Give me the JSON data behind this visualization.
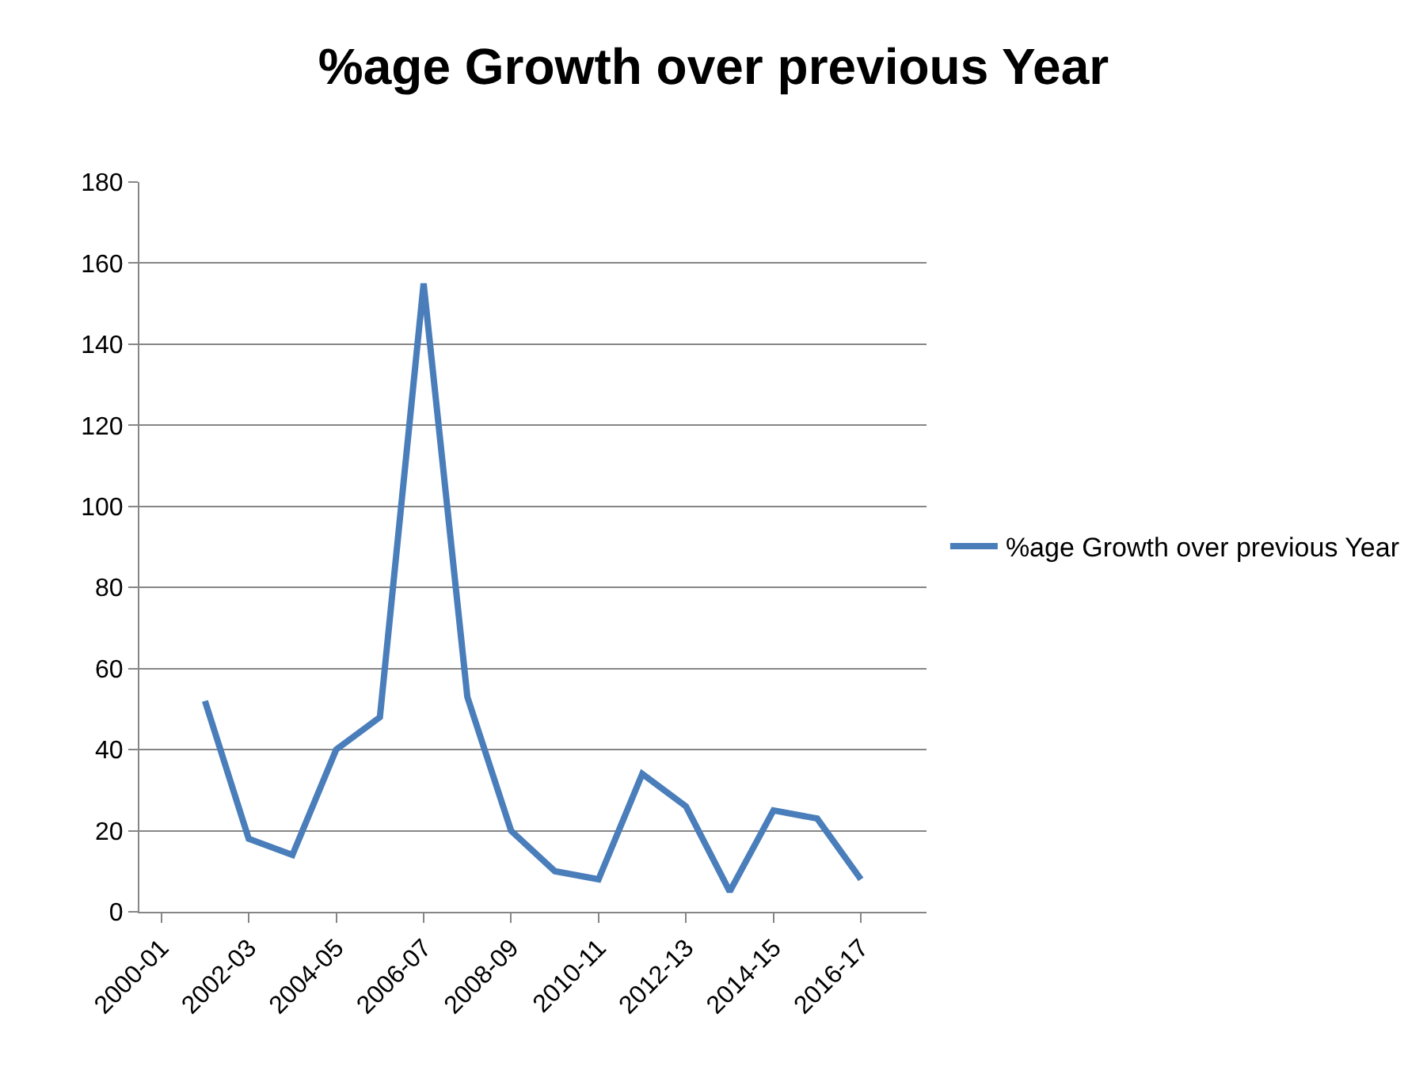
{
  "chart_data": {
    "type": "line",
    "title": "%age Growth over previous Year",
    "categories": [
      "2000-01",
      null,
      "2002-03",
      null,
      "2004-05",
      null,
      "2006-07",
      null,
      "2008-09",
      null,
      "2010-11",
      null,
      "2012-13",
      null,
      "2014-15",
      null,
      "2016-17",
      null
    ],
    "series": [
      {
        "name": "%age Growth over previous Year",
        "color": "#4a7ebb",
        "values": [
          null,
          52,
          18,
          14,
          40,
          48,
          155,
          53,
          20,
          10,
          8,
          34,
          26,
          5,
          25,
          23,
          8,
          null
        ]
      }
    ],
    "ylim": [
      0,
      180
    ],
    "yticks": [
      0,
      20,
      40,
      60,
      80,
      100,
      120,
      140,
      160,
      180
    ],
    "grid": "y",
    "legend": "right",
    "marker": "none",
    "line_style": "solid"
  }
}
